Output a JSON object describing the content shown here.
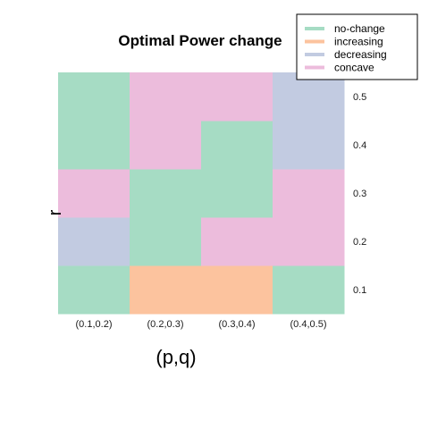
{
  "chart_data": {
    "type": "heatmap",
    "title": "Optimal Power change",
    "xlabel": "(p,q)",
    "ylabel": "r",
    "x_categories": [
      "(0.1,0.2)",
      "(0.2,0.3)",
      "(0.3,0.4)",
      "(0.4,0.5)"
    ],
    "y_categories": [
      "0.1",
      "0.2",
      "0.3",
      "0.4",
      "0.5"
    ],
    "legend": {
      "placement": "top-right",
      "entries": [
        "no-change",
        "increasing",
        "decreasing",
        "concave"
      ]
    },
    "colors": {
      "no-change": "#a6dcc4",
      "increasing": "#fcc39e",
      "decreasing": "#c2cbe1",
      "concave": "#ecbcdc"
    },
    "cells": [
      {
        "x": "(0.1,0.2)",
        "y": "0.1",
        "value": "no-change"
      },
      {
        "x": "(0.1,0.2)",
        "y": "0.2",
        "value": "decreasing"
      },
      {
        "x": "(0.1,0.2)",
        "y": "0.3",
        "value": "concave"
      },
      {
        "x": "(0.1,0.2)",
        "y": "0.4",
        "value": "no-change"
      },
      {
        "x": "(0.1,0.2)",
        "y": "0.5",
        "value": "no-change"
      },
      {
        "x": "(0.2,0.3)",
        "y": "0.1",
        "value": "increasing"
      },
      {
        "x": "(0.2,0.3)",
        "y": "0.2",
        "value": "no-change"
      },
      {
        "x": "(0.2,0.3)",
        "y": "0.3",
        "value": "no-change"
      },
      {
        "x": "(0.2,0.3)",
        "y": "0.4",
        "value": "concave"
      },
      {
        "x": "(0.2,0.3)",
        "y": "0.5",
        "value": "concave"
      },
      {
        "x": "(0.3,0.4)",
        "y": "0.1",
        "value": "increasing"
      },
      {
        "x": "(0.3,0.4)",
        "y": "0.2",
        "value": "concave"
      },
      {
        "x": "(0.3,0.4)",
        "y": "0.3",
        "value": "no-change"
      },
      {
        "x": "(0.3,0.4)",
        "y": "0.4",
        "value": "no-change"
      },
      {
        "x": "(0.3,0.4)",
        "y": "0.5",
        "value": "concave"
      },
      {
        "x": "(0.4,0.5)",
        "y": "0.1",
        "value": "no-change"
      },
      {
        "x": "(0.4,0.5)",
        "y": "0.2",
        "value": "concave"
      },
      {
        "x": "(0.4,0.5)",
        "y": "0.3",
        "value": "concave"
      },
      {
        "x": "(0.4,0.5)",
        "y": "0.4",
        "value": "decreasing"
      },
      {
        "x": "(0.4,0.5)",
        "y": "0.5",
        "value": "decreasing"
      }
    ],
    "grid": false
  }
}
